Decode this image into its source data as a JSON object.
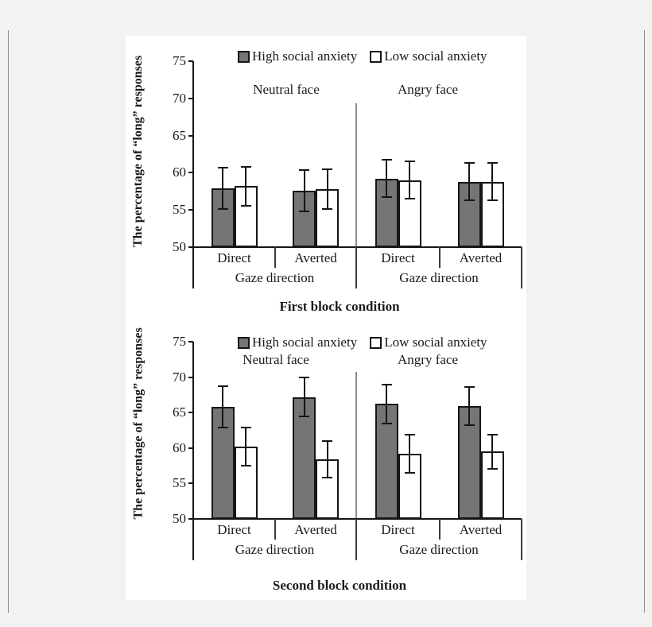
{
  "page": {
    "background": "#f2f2f2",
    "panel_background": "#ffffff",
    "edge_line_color": "#8f8f8f"
  },
  "colors": {
    "high_fill": "#757575",
    "low_fill": "#ffffff",
    "bar_border": "#161616",
    "axis": "#161616",
    "panel_divider": "#8a8a8a"
  },
  "chart_data": [
    {
      "type": "bar",
      "title": "First block condition",
      "ylabel": "The percentage of “long” responses",
      "ylim": [
        50,
        75
      ],
      "yticks": [
        75,
        70,
        65,
        60,
        55,
        50
      ],
      "grid": "off",
      "legend_position": "top-inside",
      "legend": [
        {
          "label": "High social anxiety",
          "style": "filled"
        },
        {
          "label": "Low social anxiety",
          "style": "open"
        }
      ],
      "panel_labels": [
        "Neutral face",
        "Angry face"
      ],
      "categories": [
        "Direct",
        "Averted",
        "Direct",
        "Averted"
      ],
      "group_axis_labels": [
        "Gaze direction",
        "Gaze direction"
      ],
      "series": [
        {
          "name": "High social anxiety",
          "values": [
            57.9,
            57.6,
            59.2,
            58.8
          ],
          "errors": [
            2.8,
            2.8,
            2.5,
            2.5
          ]
        },
        {
          "name": "Low social anxiety",
          "values": [
            58.2,
            57.8,
            59.0,
            58.8
          ],
          "errors": [
            2.6,
            2.7,
            2.5,
            2.5
          ]
        }
      ]
    },
    {
      "type": "bar",
      "title": "Second block condition",
      "ylabel": "The percentage of “long” responses",
      "ylim": [
        50,
        75
      ],
      "yticks": [
        75,
        70,
        65,
        60,
        55,
        50
      ],
      "grid": "off",
      "legend_position": "top-inside",
      "legend": [
        {
          "label": "High social anxiety",
          "style": "filled"
        },
        {
          "label": "Low social anxiety",
          "style": "open"
        }
      ],
      "panel_labels": [
        "Neutral face",
        "Angry face"
      ],
      "categories": [
        "Direct",
        "Averted",
        "Direct",
        "Averted"
      ],
      "group_axis_labels": [
        "Gaze direction",
        "Gaze direction"
      ],
      "series": [
        {
          "name": "High social anxiety",
          "values": [
            65.8,
            67.2,
            66.2,
            65.9
          ],
          "errors": [
            2.9,
            2.7,
            2.8,
            2.7
          ]
        },
        {
          "name": "Low social anxiety",
          "values": [
            60.2,
            58.4,
            59.2,
            59.5
          ],
          "errors": [
            2.7,
            2.6,
            2.7,
            2.4
          ]
        }
      ]
    }
  ]
}
